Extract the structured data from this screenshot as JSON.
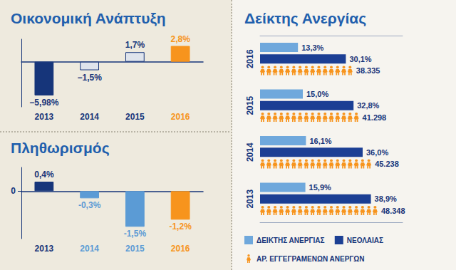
{
  "chart_data": [
    {
      "type": "bar",
      "title": "Οικονομική Ανάπτυξη",
      "categories": [
        "2013",
        "2014",
        "2015",
        "2016"
      ],
      "values": [
        -5.98,
        -1.5,
        1.7,
        2.8
      ],
      "value_labels": [
        "−5,98%",
        "−1,5%",
        "1,7%",
        "2,8%"
      ],
      "colors": [
        "#16357a",
        "#dfe4ec",
        "#dfe4ec",
        "#f7941d"
      ],
      "ylim": [
        -8,
        4
      ],
      "data_labels": true,
      "tick_labels": "x"
    },
    {
      "type": "bar",
      "title": "Πληθωρισμός",
      "categories": [
        "2013",
        "2014",
        "2015",
        "2016"
      ],
      "values": [
        0.4,
        -0.3,
        -1.5,
        -1.2
      ],
      "value_labels": [
        "0,4%",
        "-0,3%",
        "-1,5%",
        "-1,2%"
      ],
      "colors": [
        "#16357a",
        "#5b9bd5",
        "#5b9bd5",
        "#f7941d"
      ],
      "ylim": [
        -2,
        1
      ],
      "yticks": [
        0
      ],
      "data_labels": true
    },
    {
      "type": "bar",
      "orientation": "horizontal",
      "title": "Δείκτης Ανεργίας",
      "categories": [
        "2016",
        "2015",
        "2014",
        "2013"
      ],
      "series": [
        {
          "name": "ΔΕΙΚΤΗΣ ΑΝΕΡΓΙΑΣ",
          "color": "#6fa8dc",
          "values": [
            13.3,
            15.0,
            16.1,
            15.9
          ],
          "value_labels": [
            "13,3%",
            "15,0%",
            "16,1%",
            "15,9%"
          ]
        },
        {
          "name": "ΝΕΟΛΑΙΑΣ",
          "color": "#1c3f94",
          "values": [
            30.1,
            32.8,
            36.0,
            38.9
          ],
          "value_labels": [
            "30,1%",
            "32,8%",
            "36,0%",
            "38,9%"
          ]
        },
        {
          "name": "ΑΡ. ΕΓΓΕΓΡΑΜΕΝΩΝ ΑΝΕΡΓΩΝ",
          "color": "#f7941d",
          "axis": "y2",
          "marker": "person",
          "values": [
            38335,
            41298,
            45238,
            48348
          ],
          "value_labels": [
            "38.335",
            "41.298",
            "45.238",
            "48.348"
          ]
        }
      ],
      "ylim": [
        0,
        50
      ],
      "y2lim": [
        0,
        60000
      ],
      "data_labels": true,
      "tick_labels": "y",
      "legend": "bottom"
    }
  ]
}
